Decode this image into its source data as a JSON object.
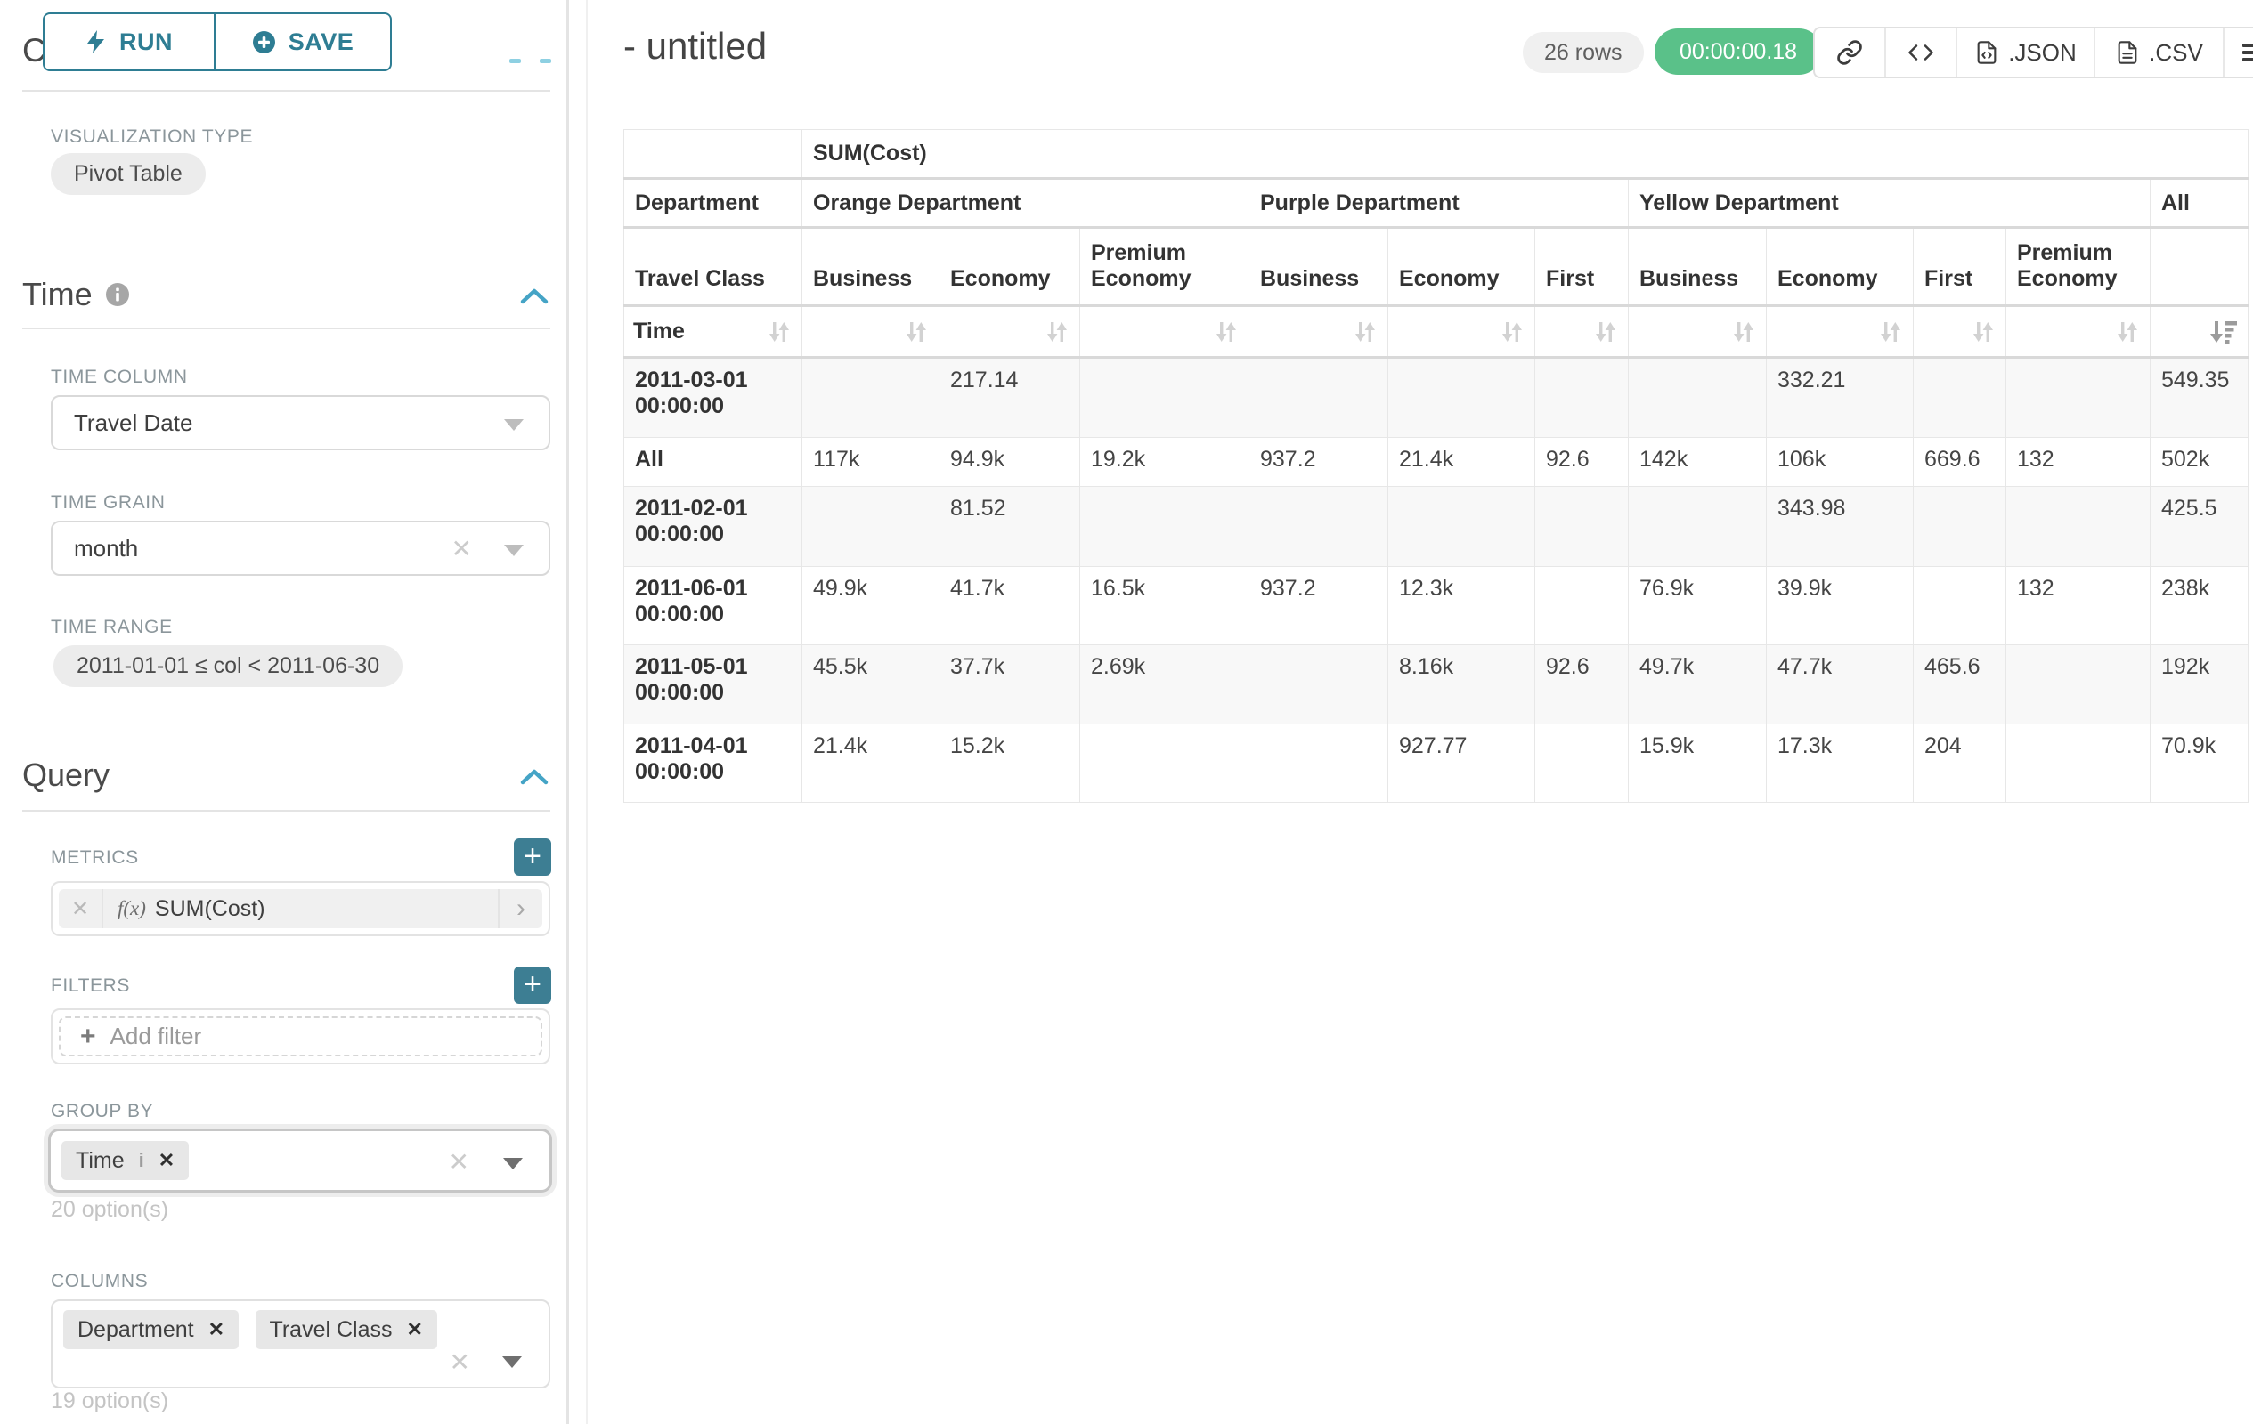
{
  "colors": {
    "primary_teal": "#2e7d93",
    "plus_teal": "#3d7e93",
    "collapse_caret_blue": "#45a4c6",
    "success_green": "#5ac189",
    "badge_gray": "#f0f0f0",
    "row_stripe": "#f8f8f8",
    "border_light": "#e7e7e7"
  },
  "icons": {
    "close": "✕",
    "plus": "+",
    "chevron_right": "›",
    "info_i": "i",
    "fx": "f(x)"
  },
  "sidebar": {
    "run_button": "RUN",
    "save_button": "SAVE",
    "chart_type_heading": "Chart Type",
    "visualization": {
      "label": "VISUALIZATION TYPE",
      "value": "Pivot Table"
    },
    "time": {
      "title": "Time",
      "column_label": "TIME COLUMN",
      "column_value": "Travel Date",
      "grain_label": "TIME GRAIN",
      "grain_value": "month",
      "range_label": "TIME RANGE",
      "range_value": "2011-01-01 ≤ col < 2011-06-30"
    },
    "query": {
      "title": "Query",
      "metrics_label": "METRICS",
      "metric_value": "SUM(Cost)",
      "filters_label": "FILTERS",
      "add_filter": "Add filter",
      "group_by_label": "GROUP BY",
      "group_by_chip": "Time",
      "group_by_options": "20 option(s)",
      "columns_label": "COLUMNS",
      "columns_chips": [
        "Department",
        "Travel Class"
      ],
      "columns_options": "19 option(s)"
    }
  },
  "header": {
    "title": "- untitled",
    "rows_badge": "26 rows",
    "duration_badge": "00:00:00.18",
    "json_label": ".JSON",
    "csv_label": ".CSV"
  },
  "chart_data": {
    "type": "table",
    "title": "SUM(Cost)",
    "metric_header": "SUM(Cost)",
    "corner_labels": {
      "row2": "Department",
      "row3": "Travel Class",
      "row4": "Time"
    },
    "column_groups": [
      {
        "label": "Orange Department",
        "columns": [
          "Business",
          "Economy",
          "Premium Economy"
        ]
      },
      {
        "label": "Purple Department",
        "columns": [
          "Business",
          "Economy",
          "First"
        ]
      },
      {
        "label": "Yellow Department",
        "columns": [
          "Business",
          "Economy",
          "First",
          "Premium Economy"
        ]
      },
      {
        "label": "All",
        "columns": [
          ""
        ]
      }
    ],
    "sort": {
      "active_column": "All",
      "direction": "desc"
    },
    "rows": [
      {
        "label": "2011-03-01 00:00:00",
        "values": [
          "",
          "217.14",
          "",
          "",
          "",
          "",
          "",
          "332.21",
          "",
          "",
          "549.35"
        ]
      },
      {
        "label": "All",
        "values": [
          "117k",
          "94.9k",
          "19.2k",
          "937.2",
          "21.4k",
          "92.6",
          "142k",
          "106k",
          "669.6",
          "132",
          "502k"
        ]
      },
      {
        "label": "2011-02-01 00:00:00",
        "values": [
          "",
          "81.52",
          "",
          "",
          "",
          "",
          "",
          "343.98",
          "",
          "",
          "425.5"
        ]
      },
      {
        "label": "2011-06-01 00:00:00",
        "values": [
          "49.9k",
          "41.7k",
          "16.5k",
          "937.2",
          "12.3k",
          "",
          "76.9k",
          "39.9k",
          "",
          "132",
          "238k"
        ]
      },
      {
        "label": "2011-05-01 00:00:00",
        "values": [
          "45.5k",
          "37.7k",
          "2.69k",
          "",
          "8.16k",
          "92.6",
          "49.7k",
          "47.7k",
          "465.6",
          "",
          "192k"
        ]
      },
      {
        "label": "2011-04-01 00:00:00",
        "values": [
          "21.4k",
          "15.2k",
          "",
          "",
          "927.77",
          "",
          "15.9k",
          "17.3k",
          "204",
          "",
          "70.9k"
        ]
      }
    ]
  }
}
